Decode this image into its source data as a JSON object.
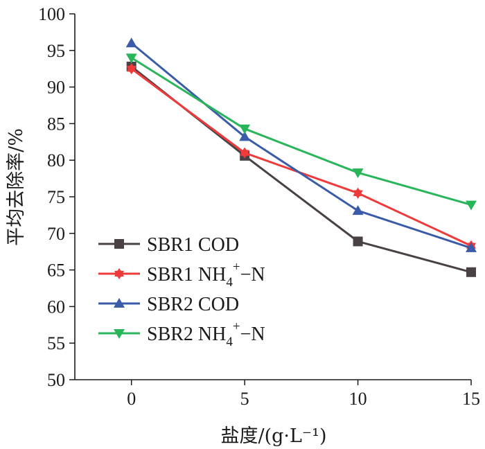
{
  "chart_data": {
    "type": "line",
    "title": "",
    "xlabel": "盐度/(g·L⁻¹)",
    "ylabel": "平均去除率/%",
    "x": [
      0,
      5,
      10,
      15
    ],
    "xticks": [
      "0",
      "5",
      "10",
      "15"
    ],
    "xlim": [
      -2.5,
      15
    ],
    "ylim": [
      50,
      100
    ],
    "yticks": [
      "50",
      "55",
      "60",
      "65",
      "70",
      "75",
      "80",
      "85",
      "90",
      "95",
      "100"
    ],
    "grid": false,
    "legend_position": "lower-left",
    "series": [
      {
        "name": "SBR1 COD",
        "name_suffix": "",
        "values": [
          92.8,
          80.6,
          68.9,
          64.7
        ],
        "color": "#4a4144",
        "marker": "square"
      },
      {
        "name": "SBR1 NH",
        "sub": "4",
        "sup": "+",
        "name_suffix": "−N",
        "values": [
          92.5,
          81.0,
          75.5,
          68.3
        ],
        "color": "#ee3a3a",
        "marker": "star"
      },
      {
        "name": "SBR2 COD",
        "name_suffix": "",
        "values": [
          96.0,
          83.2,
          73.1,
          68.0
        ],
        "color": "#3a5ba8",
        "marker": "triangle-up"
      },
      {
        "name": "SBR2 NH",
        "sub": "4",
        "sup": "+",
        "name_suffix": "−N",
        "values": [
          94.0,
          84.3,
          78.3,
          73.9
        ],
        "color": "#29b65a",
        "marker": "triangle-down"
      }
    ]
  }
}
